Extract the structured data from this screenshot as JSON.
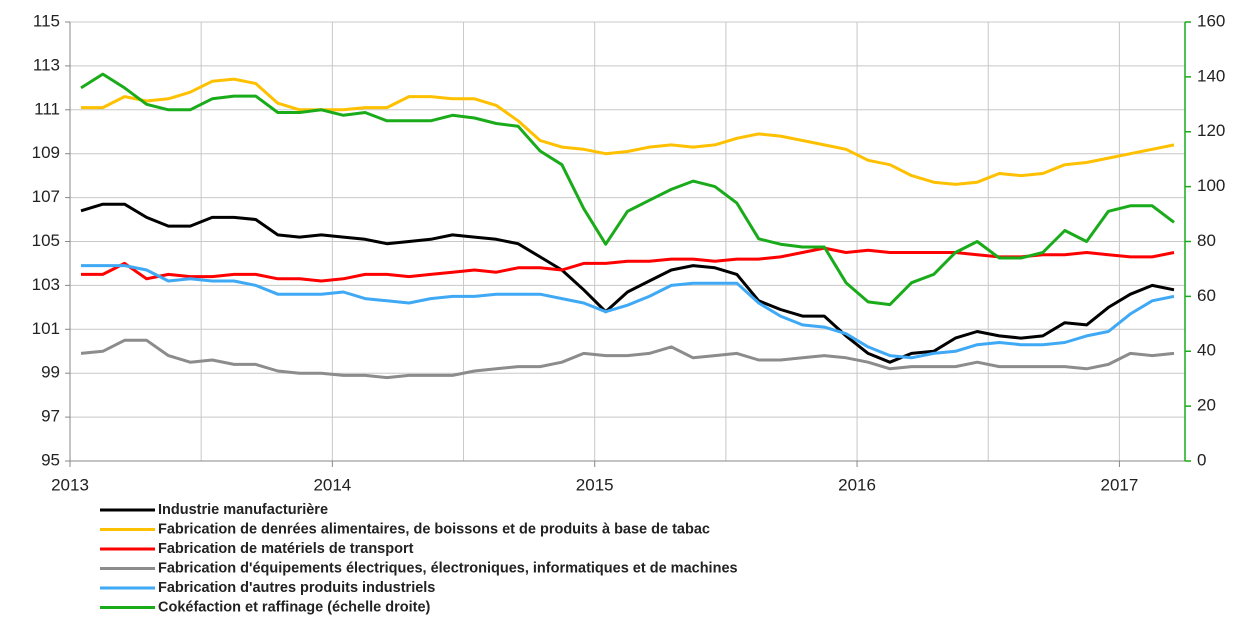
{
  "chart_data": {
    "type": "line",
    "x": [
      2013.042,
      2013.125,
      2013.208,
      2013.292,
      2013.375,
      2013.458,
      2013.542,
      2013.625,
      2013.708,
      2013.792,
      2013.875,
      2013.958,
      2014.042,
      2014.125,
      2014.208,
      2014.292,
      2014.375,
      2014.458,
      2014.542,
      2014.625,
      2014.708,
      2014.792,
      2014.875,
      2014.958,
      2015.042,
      2015.125,
      2015.208,
      2015.292,
      2015.375,
      2015.458,
      2015.542,
      2015.625,
      2015.708,
      2015.792,
      2015.875,
      2015.958,
      2016.042,
      2016.125,
      2016.208,
      2016.292,
      2016.375,
      2016.458,
      2016.542,
      2016.625,
      2016.708,
      2016.792,
      2016.875,
      2016.958,
      2017.042,
      2017.125,
      2017.208
    ],
    "xlim": [
      2013,
      2017.25
    ],
    "xticks": [
      2013,
      2014,
      2015,
      2016,
      2017
    ],
    "x_minor_ticks": [
      2013.5,
      2014.5,
      2015.5,
      2016.5
    ],
    "ylim": [
      95,
      115
    ],
    "yticks": [
      95,
      97,
      99,
      101,
      103,
      105,
      107,
      109,
      111,
      113,
      115
    ],
    "y2lim": [
      0,
      160
    ],
    "y2ticks": [
      0,
      20,
      40,
      60,
      80,
      100,
      120,
      140,
      160
    ],
    "grid": true,
    "series": [
      {
        "name": "Industrie manufacturière",
        "color": "#000000",
        "values": [
          106.4,
          106.7,
          106.7,
          106.1,
          105.7,
          105.7,
          106.1,
          106.1,
          106.0,
          105.3,
          105.2,
          105.3,
          105.2,
          105.1,
          104.9,
          105.0,
          105.1,
          105.3,
          105.2,
          105.1,
          104.9,
          104.3,
          103.7,
          102.8,
          101.8,
          102.7,
          103.2,
          103.7,
          103.9,
          103.8,
          103.5,
          102.3,
          101.9,
          101.6,
          101.6,
          100.7,
          99.9,
          99.5,
          99.9,
          100.0,
          100.6,
          100.9,
          100.7,
          100.6,
          100.7,
          101.3,
          101.2,
          102.0,
          102.6,
          103.0,
          102.8
        ]
      },
      {
        "name": "Fabrication de denrées alimentaires, de boissons et de produits à base de tabac",
        "color": "#ffc000",
        "values": [
          111.1,
          111.1,
          111.6,
          111.4,
          111.5,
          111.8,
          112.3,
          112.4,
          112.2,
          111.3,
          111.0,
          111.0,
          111.0,
          111.1,
          111.1,
          111.6,
          111.6,
          111.5,
          111.5,
          111.2,
          110.5,
          109.6,
          109.3,
          109.2,
          109.0,
          109.1,
          109.3,
          109.4,
          109.3,
          109.4,
          109.7,
          109.9,
          109.8,
          109.6,
          109.4,
          109.2,
          108.7,
          108.5,
          108.0,
          107.7,
          107.6,
          107.7,
          108.1,
          108.0,
          108.1,
          108.5,
          108.6,
          108.8,
          109.0,
          109.2,
          109.4
        ]
      },
      {
        "name": "Fabrication de matériels de transport",
        "color": "#ff0000",
        "values": [
          103.5,
          103.5,
          104.0,
          103.3,
          103.5,
          103.4,
          103.4,
          103.5,
          103.5,
          103.3,
          103.3,
          103.2,
          103.3,
          103.5,
          103.5,
          103.4,
          103.5,
          103.6,
          103.7,
          103.6,
          103.8,
          103.8,
          103.7,
          104.0,
          104.0,
          104.1,
          104.1,
          104.2,
          104.2,
          104.1,
          104.2,
          104.2,
          104.3,
          104.5,
          104.7,
          104.5,
          104.6,
          104.5,
          104.5,
          104.5,
          104.5,
          104.4,
          104.3,
          104.3,
          104.4,
          104.4,
          104.5,
          104.4,
          104.3,
          104.3,
          104.5
        ]
      },
      {
        "name": "Fabrication d'équipements électriques, électroniques, informatiques et de machines",
        "color": "#8c8c8c",
        "values": [
          99.9,
          100.0,
          100.5,
          100.5,
          99.8,
          99.5,
          99.6,
          99.4,
          99.4,
          99.1,
          99.0,
          99.0,
          98.9,
          98.9,
          98.8,
          98.9,
          98.9,
          98.9,
          99.1,
          99.2,
          99.3,
          99.3,
          99.5,
          99.9,
          99.8,
          99.8,
          99.9,
          100.2,
          99.7,
          99.8,
          99.9,
          99.6,
          99.6,
          99.7,
          99.8,
          99.7,
          99.5,
          99.2,
          99.3,
          99.3,
          99.3,
          99.5,
          99.3,
          99.3,
          99.3,
          99.3,
          99.2,
          99.4,
          99.9,
          99.8,
          99.9
        ]
      },
      {
        "name": "Fabrication d'autres produits industriels",
        "color": "#3fa9f5",
        "values": [
          103.9,
          103.9,
          103.9,
          103.7,
          103.2,
          103.3,
          103.2,
          103.2,
          103.0,
          102.6,
          102.6,
          102.6,
          102.7,
          102.4,
          102.3,
          102.2,
          102.4,
          102.5,
          102.5,
          102.6,
          102.6,
          102.6,
          102.4,
          102.2,
          101.8,
          102.1,
          102.5,
          103.0,
          103.1,
          103.1,
          103.1,
          102.2,
          101.6,
          101.2,
          101.1,
          100.8,
          100.2,
          99.8,
          99.7,
          99.9,
          100.0,
          100.3,
          100.4,
          100.3,
          100.3,
          100.4,
          100.7,
          100.9,
          101.7,
          102.3,
          102.5
        ]
      },
      {
        "name": "Cokéfaction et raffinage (échelle droite)",
        "color": "#1aab1a",
        "axis": "y2",
        "values": [
          136,
          141,
          136,
          130,
          128,
          128,
          132,
          133,
          133,
          127,
          127,
          128,
          126,
          127,
          124,
          124,
          124,
          126,
          125,
          123,
          122,
          113,
          108,
          92,
          79,
          91,
          95,
          99,
          102,
          100,
          94,
          81,
          79,
          78,
          78,
          65,
          58,
          57,
          65,
          68,
          76,
          80,
          74,
          74,
          76,
          84,
          80,
          91,
          93,
          93,
          87
        ]
      }
    ]
  }
}
